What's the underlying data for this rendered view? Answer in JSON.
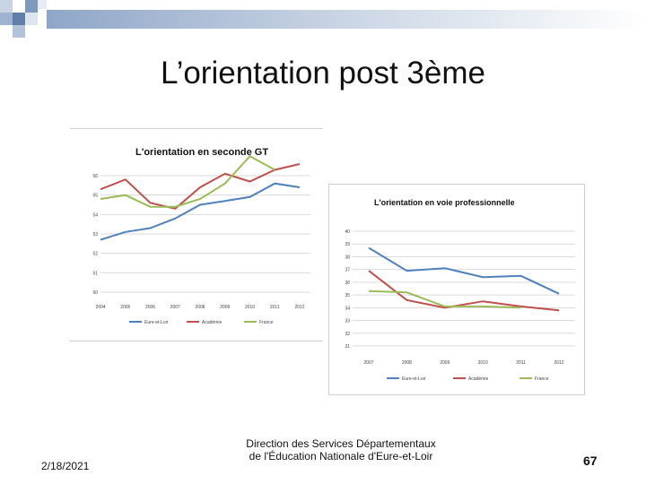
{
  "slide": {
    "title": "L’orientation post 3ème",
    "date": "2/18/2021",
    "footer_line1": "Direction des Services Départementaux",
    "footer_line2": "de l'Éducation Nationale d'Eure-et-Loir",
    "page_number": "67"
  },
  "colors": {
    "eure_et_loir": "#4f81bd",
    "academie": "#c0504d",
    "france": "#9bbb59",
    "grid": "#d9d9d9"
  },
  "chart_data": [
    {
      "type": "line",
      "title": "L'orientation en seconde GT",
      "categories": [
        "2004",
        "2005",
        "2006",
        "2007",
        "2008",
        "2009",
        "2010",
        "2011",
        "2012"
      ],
      "ylim": [
        50,
        56
      ],
      "yticks": [
        "50",
        "51",
        "52",
        "53",
        "54",
        "55",
        "56"
      ],
      "series": [
        {
          "name": "Eure-et-Loir",
          "values": [
            52.7,
            53.1,
            53.3,
            53.8,
            54.5,
            54.7,
            54.9,
            55.6,
            55.4
          ]
        },
        {
          "name": "Académie",
          "values": [
            55.3,
            55.8,
            54.6,
            54.3,
            55.4,
            56.1,
            55.7,
            56.3,
            56.6
          ]
        },
        {
          "name": "France",
          "values": [
            54.8,
            55.0,
            54.4,
            54.4,
            54.8,
            55.6,
            57.0,
            56.3,
            null
          ]
        }
      ]
    },
    {
      "type": "line",
      "title": "L'orientation en voie professionnelle",
      "categories": [
        "2007",
        "2008",
        "2009",
        "2010",
        "2011",
        "2012"
      ],
      "ylim": [
        31,
        40
      ],
      "yticks": [
        "31",
        "32",
        "33",
        "34",
        "35",
        "36",
        "37",
        "38",
        "39",
        "40"
      ],
      "series": [
        {
          "name": "Eure-et-Loir",
          "values": [
            38.7,
            36.9,
            37.1,
            36.4,
            36.5,
            35.1
          ]
        },
        {
          "name": "Académie",
          "values": [
            36.9,
            34.6,
            34.0,
            34.5,
            34.1,
            33.8
          ]
        },
        {
          "name": "France",
          "values": [
            35.3,
            35.2,
            34.1,
            34.1,
            34.0,
            null
          ]
        }
      ]
    }
  ]
}
